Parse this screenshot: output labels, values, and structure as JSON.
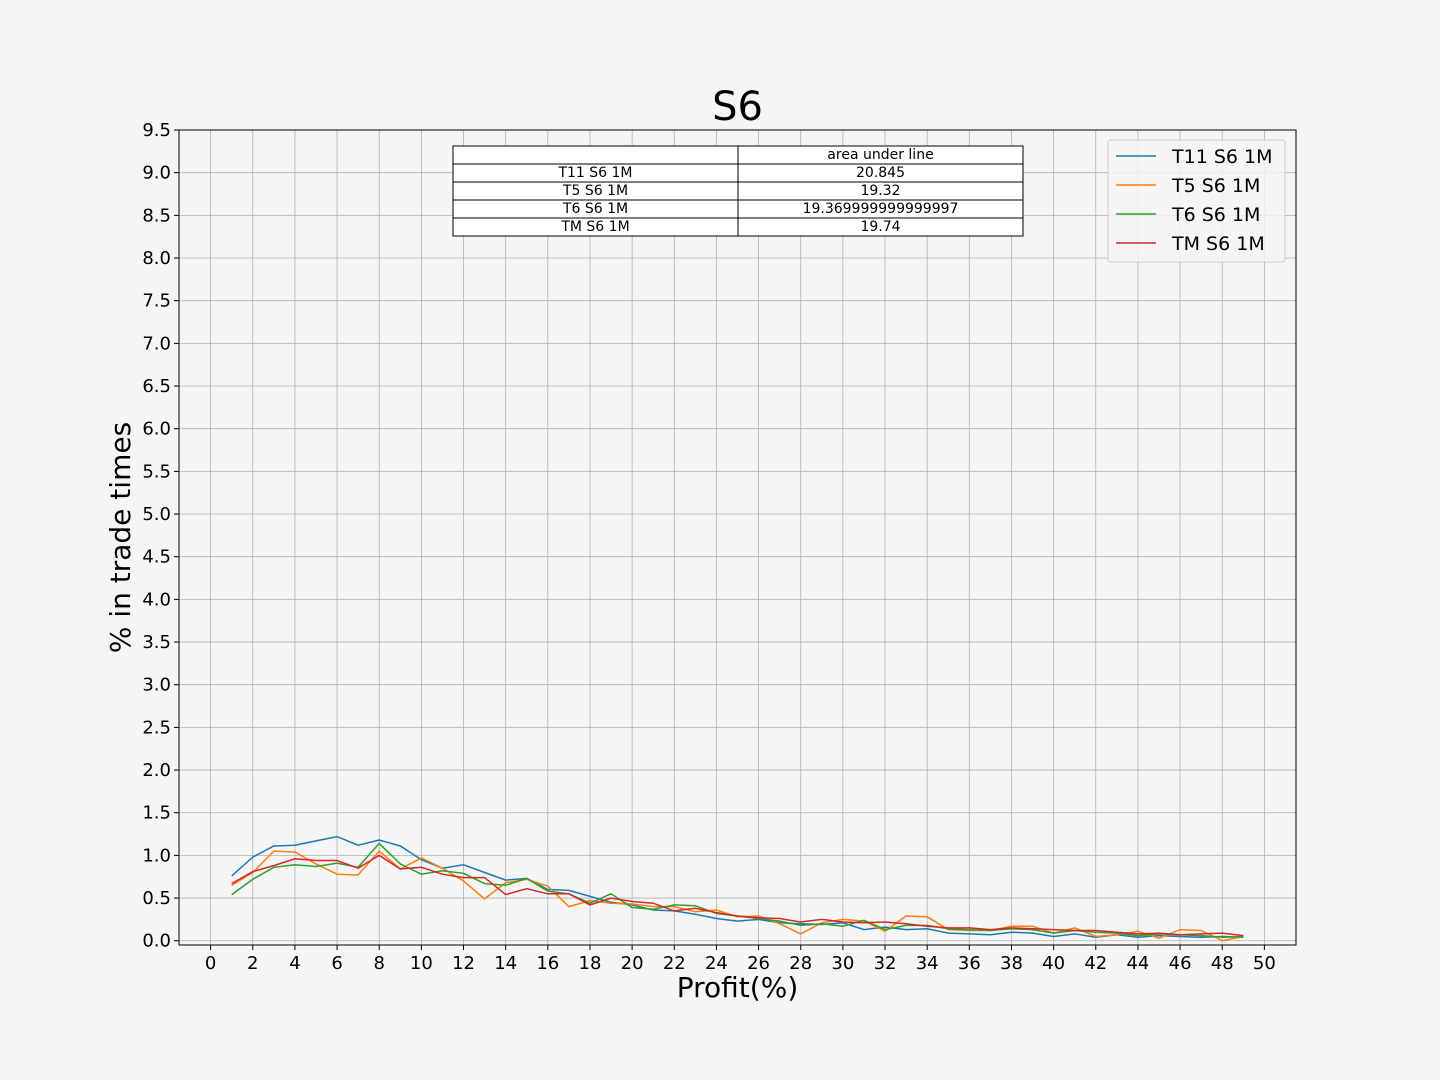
{
  "chart_data": {
    "type": "line",
    "title": "S6",
    "xlabel": "Profit(%)",
    "ylabel": "% in trade times",
    "xlim": [
      -1.5,
      51.5
    ],
    "ylim": [
      -0.05,
      9.5
    ],
    "xticks": [
      "0",
      "2",
      "4",
      "6",
      "8",
      "10",
      "12",
      "14",
      "16",
      "18",
      "20",
      "22",
      "24",
      "26",
      "28",
      "30",
      "32",
      "34",
      "36",
      "38",
      "40",
      "42",
      "44",
      "46",
      "48",
      "50"
    ],
    "yticks": [
      "0.0",
      "0.5",
      "1.0",
      "1.5",
      "2.0",
      "2.5",
      "3.0",
      "3.5",
      "4.0",
      "4.5",
      "5.0",
      "5.5",
      "6.0",
      "6.5",
      "7.0",
      "7.5",
      "8.0",
      "8.5",
      "9.0",
      "9.5"
    ],
    "grid": true,
    "legend_position": "top-right",
    "x": [
      1,
      2,
      3,
      4,
      5,
      6,
      7,
      8,
      9,
      10,
      11,
      12,
      13,
      14,
      15,
      16,
      17,
      18,
      19,
      20,
      21,
      22,
      23,
      24,
      25,
      26,
      27,
      28,
      29,
      30,
      31,
      32,
      33,
      34,
      35,
      36,
      37,
      38,
      39,
      40,
      41,
      42,
      43,
      44,
      45,
      46,
      47,
      48,
      49
    ],
    "series": [
      {
        "name": "T11 S6 1M",
        "color": "#1f77b4",
        "values": [
          0.76,
          0.98,
          1.11,
          1.12,
          1.17,
          1.22,
          1.12,
          1.18,
          1.11,
          0.95,
          0.85,
          0.89,
          0.8,
          0.71,
          0.73,
          0.6,
          0.59,
          0.52,
          0.45,
          0.42,
          0.36,
          0.35,
          0.31,
          0.26,
          0.23,
          0.25,
          0.21,
          0.2,
          0.19,
          0.21,
          0.13,
          0.16,
          0.13,
          0.14,
          0.09,
          0.08,
          0.07,
          0.1,
          0.09,
          0.05,
          0.08,
          0.04,
          0.07,
          0.04,
          0.06,
          0.05,
          0.04,
          0.05,
          0.04
        ]
      },
      {
        "name": "T5 S6 1M",
        "color": "#ff7f0e",
        "values": [
          0.65,
          0.8,
          1.05,
          1.04,
          0.9,
          0.78,
          0.77,
          1.05,
          0.84,
          0.97,
          0.85,
          0.7,
          0.49,
          0.68,
          0.72,
          0.64,
          0.4,
          0.47,
          0.44,
          0.43,
          0.4,
          0.4,
          0.34,
          0.36,
          0.28,
          0.29,
          0.2,
          0.08,
          0.21,
          0.25,
          0.23,
          0.11,
          0.29,
          0.28,
          0.13,
          0.12,
          0.12,
          0.17,
          0.17,
          0.09,
          0.15,
          0.05,
          0.07,
          0.11,
          0.03,
          0.13,
          0.12,
          0.0,
          0.05
        ]
      },
      {
        "name": "T6 S6 1M",
        "color": "#2ca02c",
        "values": [
          0.54,
          0.72,
          0.86,
          0.89,
          0.87,
          0.91,
          0.86,
          1.14,
          0.9,
          0.78,
          0.82,
          0.79,
          0.67,
          0.65,
          0.73,
          0.58,
          0.55,
          0.44,
          0.55,
          0.39,
          0.37,
          0.42,
          0.41,
          0.32,
          0.29,
          0.26,
          0.23,
          0.18,
          0.2,
          0.17,
          0.24,
          0.13,
          0.18,
          0.18,
          0.14,
          0.13,
          0.12,
          0.14,
          0.13,
          0.09,
          0.12,
          0.1,
          0.09,
          0.06,
          0.08,
          0.07,
          0.06,
          0.04,
          0.05
        ]
      },
      {
        "name": "TM S6 1M",
        "color": "#d62728",
        "values": [
          0.67,
          0.81,
          0.88,
          0.96,
          0.94,
          0.94,
          0.85,
          1.0,
          0.84,
          0.86,
          0.78,
          0.74,
          0.74,
          0.54,
          0.61,
          0.55,
          0.55,
          0.42,
          0.5,
          0.46,
          0.44,
          0.35,
          0.38,
          0.33,
          0.29,
          0.27,
          0.26,
          0.22,
          0.25,
          0.22,
          0.21,
          0.22,
          0.2,
          0.17,
          0.15,
          0.15,
          0.13,
          0.15,
          0.14,
          0.13,
          0.12,
          0.12,
          0.1,
          0.08,
          0.09,
          0.07,
          0.08,
          0.09,
          0.06
        ]
      }
    ],
    "table": {
      "header": "area under line",
      "rows": [
        {
          "label": "T11 S6 1M",
          "value": "20.845"
        },
        {
          "label": "T5 S6 1M",
          "value": "19.32"
        },
        {
          "label": "T6 S6 1M",
          "value": "19.369999999999997"
        },
        {
          "label": "TM S6 1M",
          "value": "19.74"
        }
      ]
    }
  }
}
